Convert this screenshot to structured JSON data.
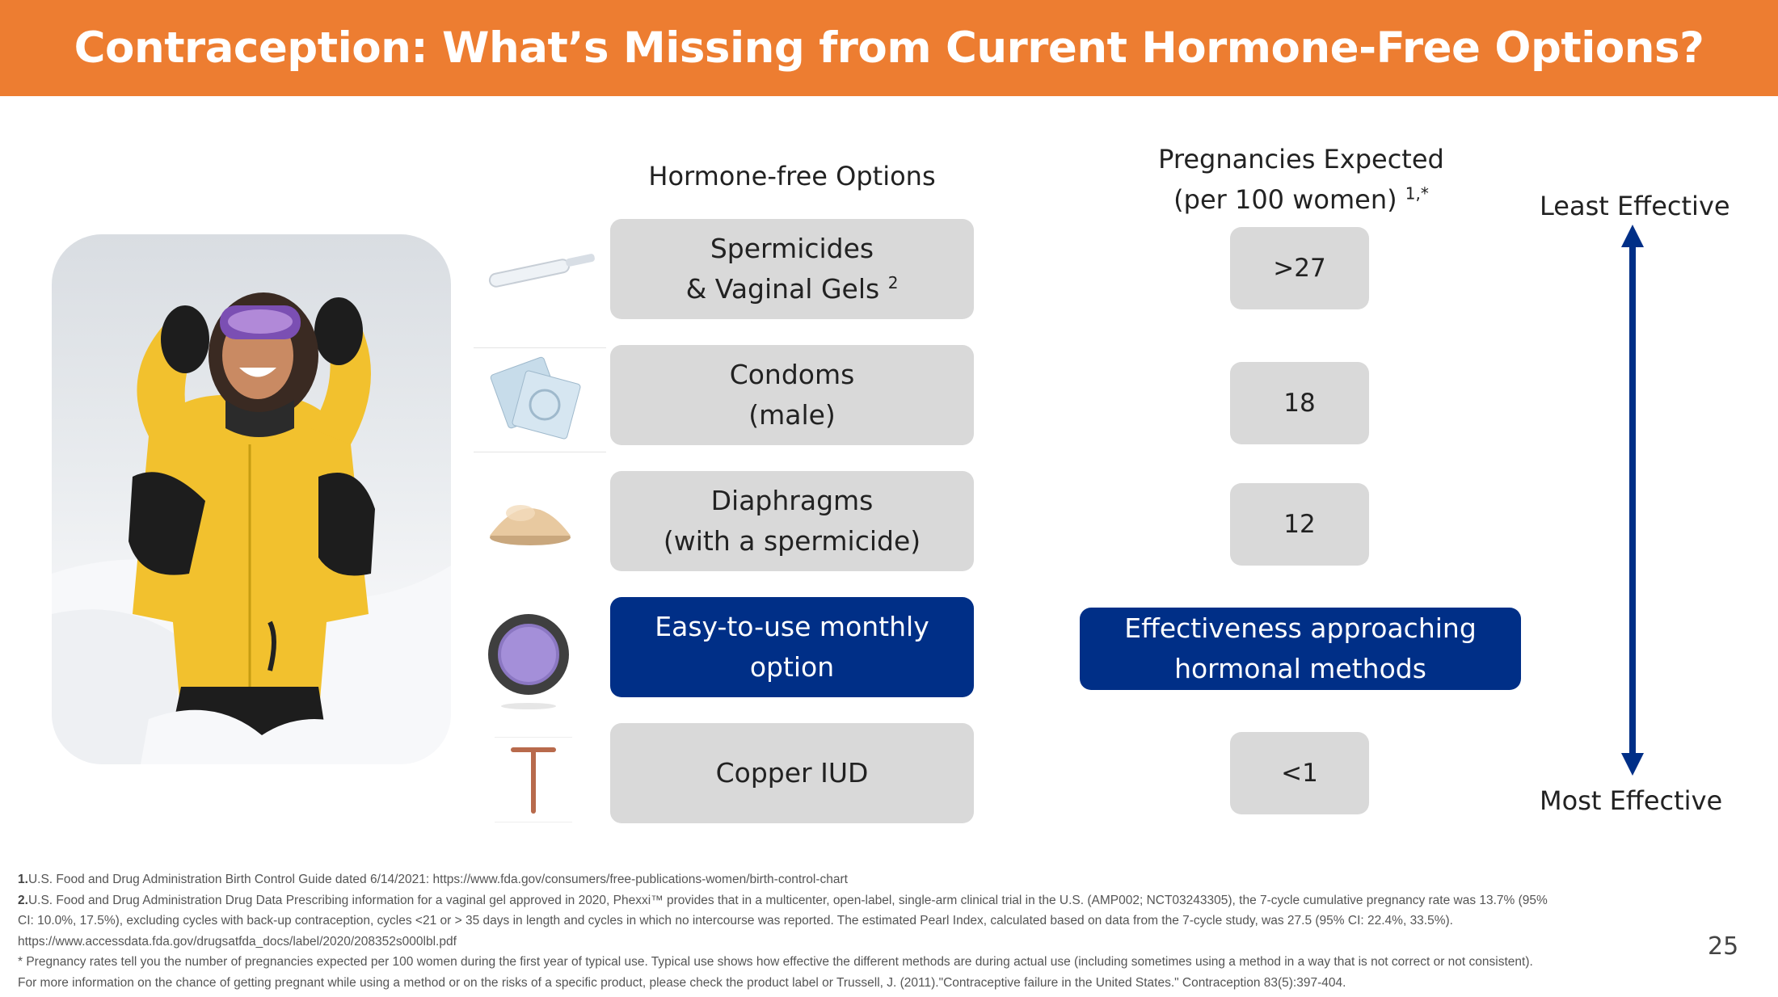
{
  "slide": {
    "title": "Contraception: What’s Missing from Current Hormone-Free Options?",
    "page_number": "25"
  },
  "options_header": "Hormone-free Options",
  "pregnancy_header": {
    "line1": "Pregnancies Expected",
    "line2": "(per 100 women)",
    "superscript": "1,*"
  },
  "options": [
    {
      "line1": "Spermicides",
      "line2": "& Vaginal Gels",
      "sup": "2",
      "value": ">27",
      "icon": "applicator-icon"
    },
    {
      "line1": "Condoms",
      "line2": "(male)",
      "value": "18",
      "icon": "condom-packets-icon"
    },
    {
      "line1": "Diaphragms",
      "line2": "(with a spermicide)",
      "value": "12",
      "icon": "diaphragm-icon"
    },
    {
      "line1": "Easy-to-use monthly",
      "line2": "option",
      "highlight": "Effectiveness approaching",
      "highlight2": "hormonal methods",
      "icon": "vaginal-ring-icon"
    },
    {
      "line1": "Copper IUD",
      "value": "<1",
      "icon": "copper-iud-icon"
    }
  ],
  "scale": {
    "top_label": "Least Effective",
    "bottom_label": "Most Effective"
  },
  "footnotes": {
    "f1_num": "1.",
    "f1_text": "U.S. Food and Drug Administration  Birth Control Guide dated 6/14/2021: https://www.fda.gov/consumers/free-publications-women/birth-control-chart",
    "f2_num": "2.",
    "f2_line1": "U.S. Food and Drug Administration Drug Data Prescribing information for a vaginal gel approved in 2020, Phexxi™ provides that in a multicenter, open-label, single-arm clinical trial in the U.S. (AMP002; NCT03243305), the 7-cycle cumulative pregnancy rate was 13.7% (95%",
    "f2_line2": "CI: 10.0%, 17.5%), excluding cycles with back-up contraception, cycles <21 or > 35 days in length and cycles in which no intercourse was reported. The estimated Pearl Index, calculated based on data from the 7-cycle study, was 27.5 (95% CI: 22.4%, 33.5%).",
    "f2_line3": "https://www.accessdata.fda.gov/drugsatfda_docs/label/2020/208352s000lbl.pdf",
    "star_line1": "* Pregnancy rates tell you the number of pregnancies expected per 100 women during the first year of typical use. Typical use shows how effective the different methods are during actual use (including sometimes using a method in a way that is not correct or not consistent).",
    "star_line2": "For more information on the chance of getting pregnant while using a method or on the risks of a specific product, please check the product label or Trussell, J. (2011).\"Contraceptive failure in the United States.\" Contraception 83(5):397-404."
  },
  "colors": {
    "banner": "#ed7d31",
    "navy": "#002f87",
    "pill_gray": "#d9d9d9"
  }
}
